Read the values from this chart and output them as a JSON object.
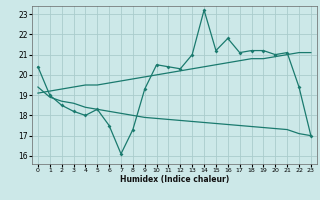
{
  "xlabel": "Humidex (Indice chaleur)",
  "bg_color": "#cce8e8",
  "grid_color": "#aacccc",
  "line_color": "#1a7a6e",
  "xlim": [
    -0.5,
    23.5
  ],
  "ylim": [
    15.6,
    23.4
  ],
  "yticks": [
    16,
    17,
    18,
    19,
    20,
    21,
    22,
    23
  ],
  "xticks": [
    0,
    1,
    2,
    3,
    4,
    5,
    6,
    7,
    8,
    9,
    10,
    11,
    12,
    13,
    14,
    15,
    16,
    17,
    18,
    19,
    20,
    21,
    22,
    23
  ],
  "line1_x": [
    0,
    1,
    2,
    3,
    4,
    5,
    6,
    7,
    8,
    9,
    10,
    11,
    12,
    13,
    14,
    15,
    16,
    17,
    18,
    19,
    20,
    21,
    22,
    23
  ],
  "line1_y": [
    20.4,
    19.0,
    18.5,
    18.2,
    18.0,
    18.3,
    17.5,
    16.1,
    17.3,
    19.3,
    20.5,
    20.4,
    20.3,
    21.0,
    23.2,
    21.2,
    21.8,
    21.1,
    21.2,
    21.2,
    21.0,
    21.1,
    19.4,
    17.0
  ],
  "line2_x": [
    0,
    1,
    2,
    3,
    4,
    5,
    6,
    7,
    8,
    9,
    10,
    11,
    12,
    13,
    14,
    15,
    16,
    17,
    18,
    19,
    20,
    21,
    22,
    23
  ],
  "line2_y": [
    19.1,
    19.2,
    19.3,
    19.4,
    19.5,
    19.5,
    19.6,
    19.7,
    19.8,
    19.9,
    20.0,
    20.1,
    20.2,
    20.3,
    20.4,
    20.5,
    20.6,
    20.7,
    20.8,
    20.8,
    20.9,
    21.0,
    21.1,
    21.1
  ],
  "line3_x": [
    0,
    1,
    2,
    3,
    4,
    5,
    6,
    7,
    8,
    9,
    10,
    11,
    12,
    13,
    14,
    15,
    16,
    17,
    18,
    19,
    20,
    21,
    22,
    23
  ],
  "line3_y": [
    19.4,
    18.9,
    18.7,
    18.6,
    18.4,
    18.3,
    18.2,
    18.1,
    18.0,
    17.9,
    17.85,
    17.8,
    17.75,
    17.7,
    17.65,
    17.6,
    17.55,
    17.5,
    17.45,
    17.4,
    17.35,
    17.3,
    17.1,
    17.0
  ]
}
